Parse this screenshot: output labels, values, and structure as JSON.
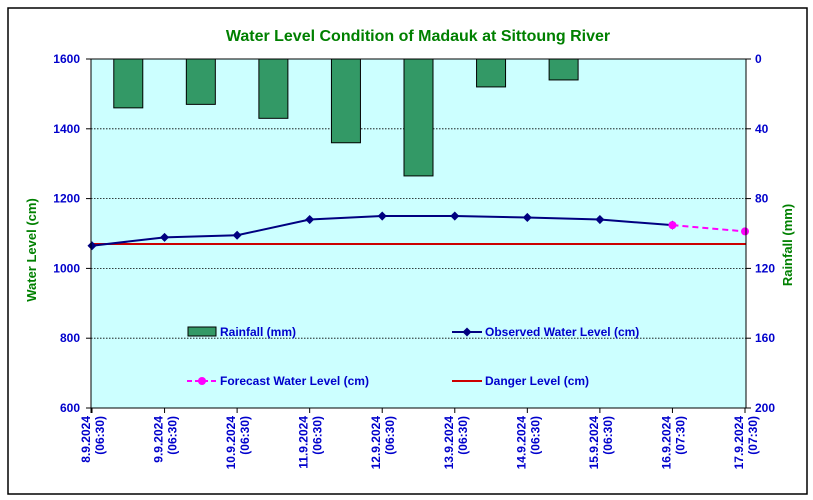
{
  "chart_data": {
    "type": "bar+line",
    "title": "Water Level Condition of Madauk at Sittoung River",
    "categories": [
      [
        "8.9.2024",
        "(06:30)"
      ],
      [
        "9.9.2024",
        "(06:30)"
      ],
      [
        "10.9.2024",
        "(06:30)"
      ],
      [
        "11.9.2024",
        "(06:30)"
      ],
      [
        "12.9.2024",
        "(06:30)"
      ],
      [
        "13.9.2024",
        "(06:30)"
      ],
      [
        "14.9.2024",
        "(06:30)"
      ],
      [
        "15.9.2024",
        "(06:30)"
      ],
      [
        "16.9.2024",
        "(07:30)"
      ],
      [
        "17.9.2024",
        "(07:30)"
      ]
    ],
    "left_axis": {
      "label": "Water Level (cm)",
      "min": 600,
      "max": 1600,
      "step": 200,
      "ticks": [
        "1600",
        "1400",
        "1200",
        "1000",
        "800",
        "600"
      ]
    },
    "right_axis": {
      "label": "Rainfall (mm)",
      "min": 0,
      "max": 200,
      "step": 40,
      "inverted": true,
      "ticks": [
        "0",
        "40",
        "80",
        "120",
        "160",
        "200"
      ]
    },
    "grid": "horizontal dotted",
    "series": [
      {
        "name": "Rainfall (mm)",
        "type": "bar",
        "axis": "right",
        "values": [
          28,
          26,
          34,
          48,
          67,
          16,
          12,
          null,
          null,
          null
        ],
        "color": "#339966"
      },
      {
        "name": "Observed Water Level (cm)",
        "type": "line",
        "axis": "left",
        "values": [
          1065,
          1089,
          1095,
          1140,
          1150,
          1150,
          1146,
          1140,
          1124,
          null
        ],
        "color": "#000080"
      },
      {
        "name": "Forecast Water Level (cm)",
        "type": "line-dashed",
        "axis": "left",
        "values": [
          null,
          null,
          null,
          null,
          null,
          null,
          null,
          null,
          1124,
          1106
        ],
        "color": "#ff00ff"
      },
      {
        "name": "Danger Level (cm)",
        "type": "hline",
        "axis": "left",
        "value": 1070,
        "color": "#cc0000"
      }
    ],
    "colors": {
      "plot_background": "#ccffff",
      "title": "#008000",
      "axis_title": "#008000",
      "tick_labels": "#0000cc",
      "legend_text": "#0000cc"
    }
  }
}
